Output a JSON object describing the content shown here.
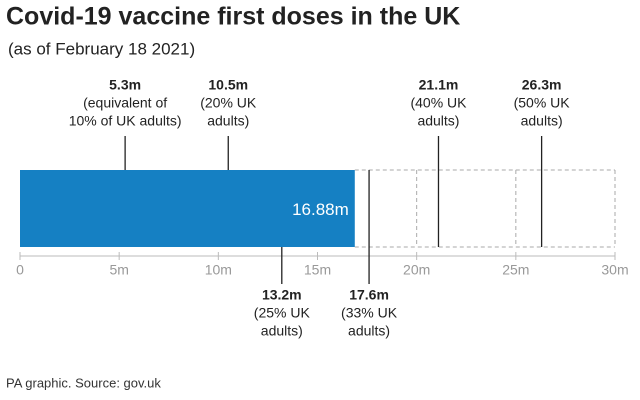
{
  "chart_data": {
    "type": "bar",
    "title": "Covid-19 vaccine first doses in the UK",
    "subtitle": "(as of February 18 2021)",
    "values": [
      16.88
    ],
    "value_labels": [
      "16.88m"
    ],
    "color": "#1580c3",
    "xlim": [
      0,
      30
    ],
    "xticks": [
      0,
      {
        "value": 5,
        "label": "5m"
      },
      {
        "value": 10,
        "label": "10m"
      },
      {
        "value": 15,
        "label": "15m"
      },
      {
        "value": 20,
        "label": "20m"
      },
      {
        "value": 25,
        "label": "25m"
      },
      {
        "value": 30,
        "label": "30m"
      }
    ],
    "annotations": [
      {
        "value": 5.3,
        "label": "5.3m",
        "note": [
          "(equivalent of",
          "10% of UK adults)"
        ],
        "position": "above"
      },
      {
        "value": 10.5,
        "label": "10.5m",
        "note": [
          "(20% UK",
          "adults)"
        ],
        "position": "above"
      },
      {
        "value": 21.1,
        "label": "21.1m",
        "note": [
          "(40% UK",
          "adults)"
        ],
        "position": "above"
      },
      {
        "value": 26.3,
        "label": "26.3m",
        "note": [
          "(50% UK",
          "adults)"
        ],
        "position": "above"
      },
      {
        "value": 13.2,
        "label": "13.2m",
        "note": [
          "(25% UK",
          "adults)"
        ],
        "position": "below"
      },
      {
        "value": 17.6,
        "label": "17.6m",
        "note": [
          "(33% UK",
          "adults)"
        ],
        "position": "below"
      }
    ],
    "source": "PA graphic. Source: gov.uk"
  }
}
